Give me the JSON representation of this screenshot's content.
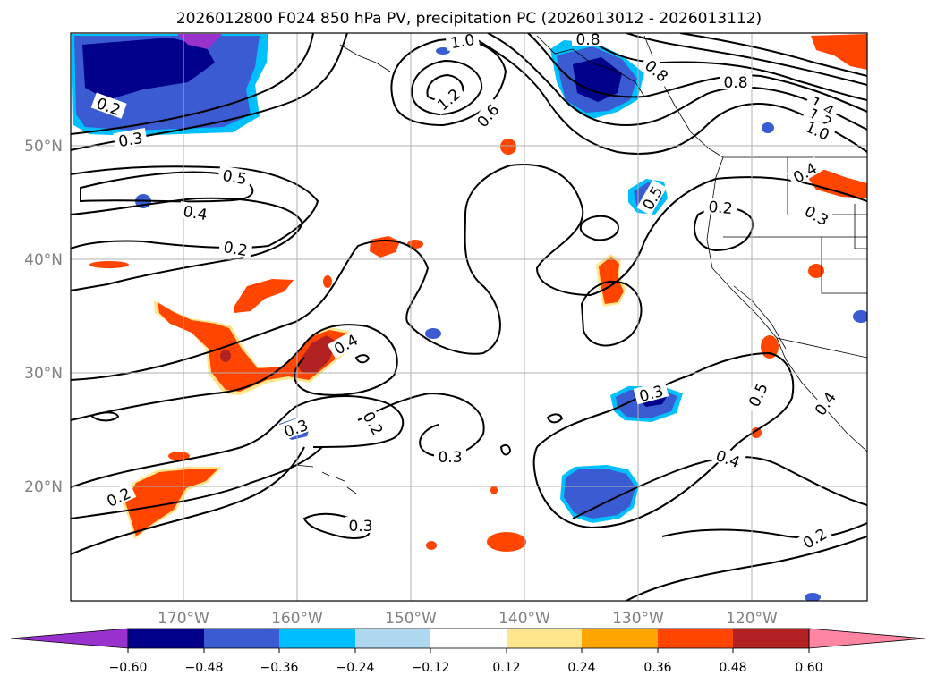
{
  "title": "2026012800 F024 850 hPa PV, precipitation PC (2026013012 - 2026013112)",
  "map": {
    "lon_labels": [
      "170°W",
      "160°W",
      "150°W",
      "140°W",
      "130°W",
      "120°W"
    ],
    "lat_labels": [
      "50°N",
      "40°N",
      "30°N",
      "20°N"
    ],
    "contour_labels": [
      "1.0",
      "0.8",
      "0.8",
      "0.8",
      "1.4",
      "1.2",
      "1.0",
      "1.2",
      "0.6",
      "0.2",
      "0.3",
      "0.5",
      "0.4",
      "0.2",
      "0.4",
      "0.5",
      "0.2",
      "0.3",
      "0.4",
      "0.3",
      "0.2",
      "0.3",
      "0.2",
      "0.3",
      "0.5",
      "0.4",
      "0.4",
      "0.2",
      "0.3"
    ]
  },
  "colorbar": {
    "tick_labels": [
      "−0.60",
      "−0.48",
      "−0.36",
      "−0.24",
      "−0.12",
      "0.12",
      "0.24",
      "0.36",
      "0.48",
      "0.60"
    ],
    "colors": [
      "#9932cc",
      "#00008b",
      "#3a5bd1",
      "#00bfff",
      "#add8f0",
      "#ffffff",
      "#ffe68c",
      "#ffa500",
      "#ff4500",
      "#b22222",
      "#ff85a2"
    ]
  }
}
